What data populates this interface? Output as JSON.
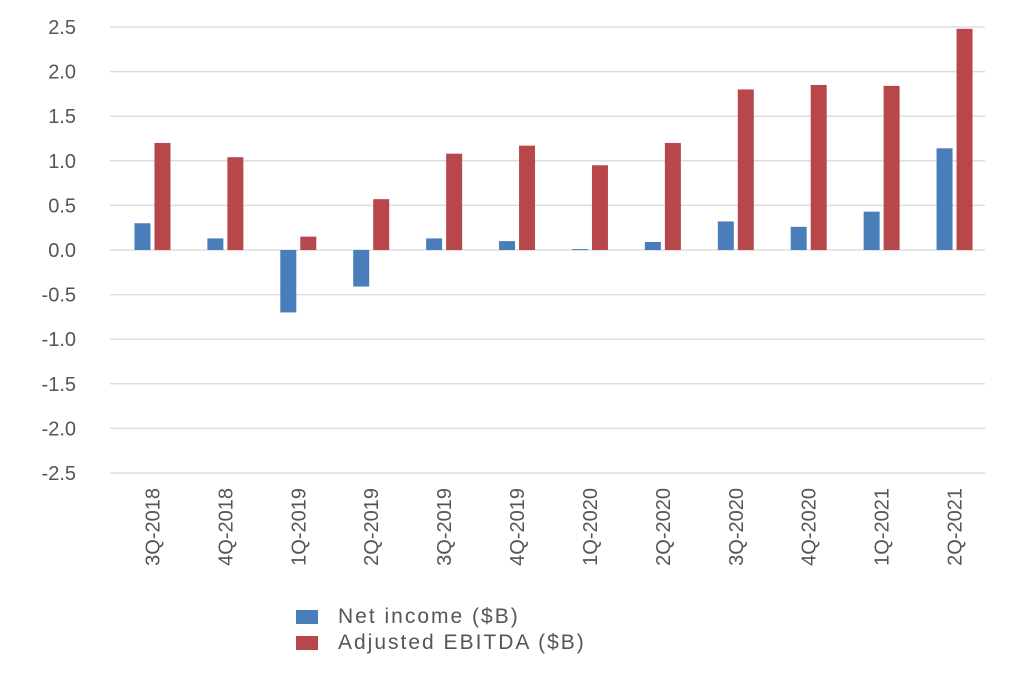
{
  "chart_data": {
    "type": "bar",
    "title": "",
    "xlabel": "",
    "ylabel": "",
    "categories": [
      "3Q-2018",
      "4Q-2018",
      "1Q-2019",
      "2Q-2019",
      "3Q-2019",
      "4Q-2019",
      "1Q-2020",
      "2Q-2020",
      "3Q-2020",
      "4Q-2020",
      "1Q-2021",
      "2Q-2021"
    ],
    "yticks": [
      "2.5",
      "2.0",
      "1.5",
      "1.0",
      "0.5",
      "0.0",
      "-0.5",
      "-1.0",
      "-1.5",
      "-2.0",
      "-2.5"
    ],
    "ylim": [
      -2.5,
      2.5
    ],
    "grid": true,
    "legend_position": "bottom",
    "series": [
      {
        "name": "Net income ($B)",
        "color": "#4a7ebb",
        "values": [
          0.3,
          0.13,
          -0.7,
          -0.41,
          0.13,
          0.1,
          0.01,
          0.09,
          0.32,
          0.26,
          0.43,
          1.14
        ]
      },
      {
        "name": "Adjusted EBITDA ($B)",
        "color": "#b7474a",
        "values": [
          1.2,
          1.04,
          0.15,
          0.57,
          1.08,
          1.17,
          0.95,
          1.2,
          1.8,
          1.85,
          1.84,
          2.48
        ]
      }
    ]
  }
}
